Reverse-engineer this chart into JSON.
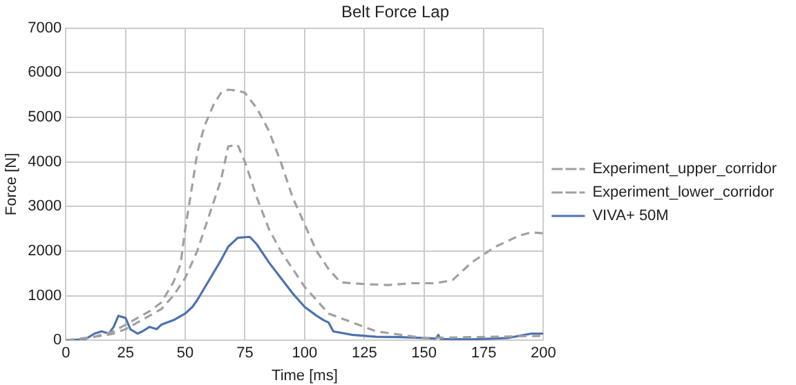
{
  "chart_data": {
    "type": "line",
    "title": "Belt Force Lap",
    "xlabel": "Time [ms]",
    "ylabel": "Force [N]",
    "xlim": [
      0,
      200
    ],
    "xticks": [
      0,
      25,
      50,
      75,
      100,
      125,
      150,
      175,
      200
    ],
    "ylim": [
      0,
      7000
    ],
    "yticks": [
      0,
      1000,
      2000,
      3000,
      4000,
      5000,
      6000,
      7000
    ],
    "grid": true,
    "legend": "right",
    "marker": "none",
    "series": [
      {
        "name": "Experiment_upper_corridor",
        "color": "#a0a0a0",
        "line_style": "dashed",
        "x": [
          0,
          10,
          20,
          25,
          30,
          35,
          40,
          45,
          48,
          50,
          53,
          55,
          58,
          62,
          65,
          68,
          72,
          75,
          80,
          85,
          90,
          95,
          100,
          105,
          110,
          115,
          125,
          135,
          145,
          155,
          162,
          170,
          180,
          190,
          195,
          200
        ],
        "values": [
          0,
          50,
          200,
          350,
          500,
          650,
          850,
          1300,
          1700,
          2500,
          3500,
          4200,
          4800,
          5300,
          5550,
          5620,
          5600,
          5550,
          5200,
          4700,
          4000,
          3200,
          2600,
          2000,
          1600,
          1300,
          1260,
          1240,
          1280,
          1280,
          1350,
          1750,
          2100,
          2350,
          2420,
          2400
        ]
      },
      {
        "name": "Experiment_lower_corridor",
        "color": "#a0a0a0",
        "line_style": "dashed",
        "x": [
          0,
          15,
          20,
          25,
          30,
          35,
          40,
          45,
          50,
          55,
          60,
          65,
          68,
          72,
          75,
          80,
          85,
          90,
          95,
          100,
          105,
          110,
          115,
          120,
          130,
          150,
          160,
          180,
          200
        ],
        "values": [
          0,
          100,
          150,
          250,
          400,
          550,
          700,
          1000,
          1400,
          2000,
          2800,
          3600,
          4350,
          4380,
          4000,
          3200,
          2500,
          2000,
          1600,
          1200,
          900,
          600,
          500,
          400,
          200,
          50,
          60,
          80,
          100
        ]
      },
      {
        "name": "VIVA+ 50M",
        "color": "#4c72b0",
        "line_style": "solid",
        "x": [
          0,
          8,
          12,
          15,
          18,
          20,
          22,
          25,
          27,
          30,
          32,
          35,
          38,
          40,
          45,
          50,
          53,
          55,
          60,
          65,
          68,
          72,
          77,
          80,
          85,
          90,
          95,
          100,
          105,
          108,
          110,
          112,
          120,
          130,
          140,
          150,
          155,
          156,
          157,
          170,
          185,
          195,
          200
        ],
        "values": [
          0,
          20,
          150,
          200,
          150,
          300,
          550,
          500,
          250,
          150,
          200,
          300,
          250,
          350,
          450,
          600,
          750,
          900,
          1350,
          1800,
          2100,
          2300,
          2320,
          2150,
          1750,
          1400,
          1050,
          750,
          550,
          450,
          400,
          200,
          120,
          80,
          70,
          50,
          40,
          120,
          30,
          20,
          50,
          150,
          150
        ]
      }
    ]
  }
}
